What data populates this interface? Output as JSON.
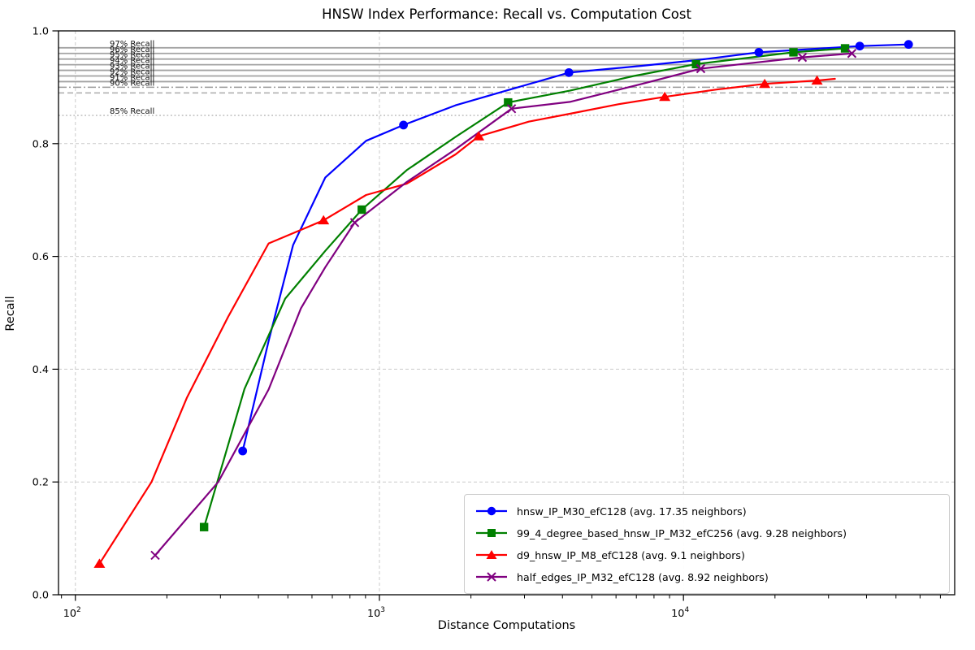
{
  "chart_data": {
    "type": "line",
    "title": "HNSW Index Performance: Recall vs. Computation Cost",
    "xlabel": "Distance Computations",
    "ylabel": "Recall",
    "x_scale": "log",
    "xlim": [
      88,
      78000
    ],
    "ylim": [
      0.0,
      1.0
    ],
    "x_ticks": [
      {
        "value": 100,
        "label": "10^2"
      },
      {
        "value": 1000,
        "label": "10^3"
      },
      {
        "value": 10000,
        "label": "10^4"
      }
    ],
    "y_ticks": [
      0.0,
      0.2,
      0.4,
      0.6,
      0.8,
      1.0
    ],
    "grid": true,
    "legend_position": "lower right",
    "reference_lines": [
      {
        "label": "97% Recall",
        "value": 0.97,
        "style": "solid"
      },
      {
        "label": "96% Recall",
        "value": 0.96,
        "style": "solid"
      },
      {
        "label": "95% Recall",
        "value": 0.95,
        "style": "solid"
      },
      {
        "label": "94% Recall",
        "value": 0.94,
        "style": "solid"
      },
      {
        "label": "93% Recall",
        "value": 0.93,
        "style": "solid"
      },
      {
        "label": "92% Recall",
        "value": 0.92,
        "style": "solid"
      },
      {
        "label": "91% Recall",
        "value": 0.91,
        "style": "solid"
      },
      {
        "label": "90% Recall",
        "value": 0.9,
        "style": "dashdot"
      },
      {
        "label": "",
        "value": 0.89,
        "style": "dashed"
      },
      {
        "label": "85% Recall",
        "value": 0.85,
        "style": "dotted"
      }
    ],
    "series": [
      {
        "name": "hnsw_IP_M30_efC128",
        "label": "hnsw_IP_M30_efC128 (avg. 17.35 neighbors)",
        "color": "#0000ff",
        "marker": "circle",
        "markers": [
          [
            355,
            0.255
          ],
          [
            1200,
            0.833
          ],
          [
            4200,
            0.926
          ],
          [
            17700,
            0.962
          ],
          [
            38000,
            0.973
          ],
          [
            55000,
            0.976
          ]
        ],
        "line": [
          [
            355,
            0.255
          ],
          [
            432,
            0.45
          ],
          [
            520,
            0.62
          ],
          [
            664,
            0.74
          ],
          [
            904,
            0.805
          ],
          [
            1200,
            0.833
          ],
          [
            1780,
            0.868
          ],
          [
            2570,
            0.893
          ],
          [
            4200,
            0.926
          ],
          [
            7300,
            0.938
          ],
          [
            11000,
            0.948
          ],
          [
            17700,
            0.962
          ],
          [
            38000,
            0.973
          ],
          [
            55000,
            0.976
          ]
        ]
      },
      {
        "name": "99_4_degree_based_hnsw_IP_M32_efC256",
        "label": "99_4_degree_based_hnsw_IP_M32_efC256 (avg. 9.28 neighbors)",
        "color": "#008000",
        "marker": "square",
        "markers": [
          [
            265,
            0.12
          ],
          [
            875,
            0.683
          ],
          [
            2650,
            0.873
          ],
          [
            11000,
            0.941
          ],
          [
            23000,
            0.962
          ],
          [
            34000,
            0.969
          ]
        ],
        "line": [
          [
            265,
            0.12
          ],
          [
            360,
            0.365
          ],
          [
            490,
            0.525
          ],
          [
            664,
            0.61
          ],
          [
            875,
            0.683
          ],
          [
            1230,
            0.753
          ],
          [
            1780,
            0.812
          ],
          [
            2650,
            0.873
          ],
          [
            4230,
            0.894
          ],
          [
            6870,
            0.92
          ],
          [
            11000,
            0.941
          ],
          [
            23000,
            0.962
          ],
          [
            34000,
            0.969
          ]
        ]
      },
      {
        "name": "d9_hnsw_IP_M8_efC128",
        "label": "d9_hnsw_IP_M8_efC128 (avg. 9.1 neighbors)",
        "color": "#ff0000",
        "marker": "triangle",
        "markers": [
          [
            120,
            0.055
          ],
          [
            655,
            0.664
          ],
          [
            2120,
            0.813
          ],
          [
            8680,
            0.883
          ],
          [
            18500,
            0.906
          ],
          [
            27500,
            0.912
          ]
        ],
        "line": [
          [
            120,
            0.055
          ],
          [
            178,
            0.2
          ],
          [
            233,
            0.35
          ],
          [
            318,
            0.493
          ],
          [
            432,
            0.623
          ],
          [
            655,
            0.664
          ],
          [
            904,
            0.709
          ],
          [
            1230,
            0.729
          ],
          [
            1780,
            0.781
          ],
          [
            2120,
            0.813
          ],
          [
            3100,
            0.839
          ],
          [
            4230,
            0.853
          ],
          [
            6130,
            0.87
          ],
          [
            8680,
            0.883
          ],
          [
            12850,
            0.896
          ],
          [
            18500,
            0.906
          ],
          [
            27500,
            0.912
          ],
          [
            31500,
            0.915
          ]
        ]
      },
      {
        "name": "half_edges_IP_M32_efC128",
        "label": "half_edges_IP_M32_efC128 (avg. 8.92 neighbors)",
        "color": "#800080",
        "marker": "x",
        "markers": [
          [
            183,
            0.07
          ],
          [
            829,
            0.66
          ],
          [
            2720,
            0.862
          ],
          [
            11400,
            0.933
          ],
          [
            24600,
            0.953
          ],
          [
            35800,
            0.96
          ]
        ],
        "line": [
          [
            183,
            0.07
          ],
          [
            295,
            0.2
          ],
          [
            432,
            0.364
          ],
          [
            552,
            0.508
          ],
          [
            664,
            0.581
          ],
          [
            829,
            0.66
          ],
          [
            1230,
            0.732
          ],
          [
            1780,
            0.79
          ],
          [
            2720,
            0.862
          ],
          [
            4230,
            0.874
          ],
          [
            7310,
            0.906
          ],
          [
            11400,
            0.933
          ],
          [
            24600,
            0.953
          ],
          [
            35800,
            0.96
          ]
        ]
      }
    ]
  }
}
